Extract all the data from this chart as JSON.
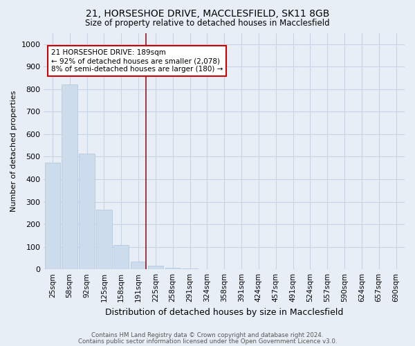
{
  "title1": "21, HORSESHOE DRIVE, MACCLESFIELD, SK11 8GB",
  "title2": "Size of property relative to detached houses in Macclesfield",
  "xlabel": "Distribution of detached houses by size in Macclesfield",
  "ylabel": "Number of detached properties",
  "categories": [
    "25sqm",
    "58sqm",
    "92sqm",
    "125sqm",
    "158sqm",
    "191sqm",
    "225sqm",
    "258sqm",
    "291sqm",
    "324sqm",
    "358sqm",
    "391sqm",
    "424sqm",
    "457sqm",
    "491sqm",
    "524sqm",
    "557sqm",
    "590sqm",
    "624sqm",
    "657sqm",
    "690sqm"
  ],
  "values": [
    475,
    820,
    515,
    265,
    108,
    35,
    15,
    8,
    3,
    1,
    0,
    0,
    0,
    0,
    0,
    0,
    0,
    0,
    0,
    0,
    0
  ],
  "property_index": 5,
  "annotation_line1": "21 HORSESHOE DRIVE: 189sqm",
  "annotation_line2": "← 92% of detached houses are smaller (2,078)",
  "annotation_line3": "8% of semi-detached houses are larger (180) →",
  "bar_color": "#cddcec",
  "bar_edge_color": "#b0c4d8",
  "highlight_color": "#8b1a1a",
  "annotation_box_color": "#ffffff",
  "annotation_box_edge": "#cc0000",
  "grid_color": "#c8d4e4",
  "background_color": "#e8eef6",
  "footer1": "Contains HM Land Registry data © Crown copyright and database right 2024.",
  "footer2": "Contains public sector information licensed under the Open Government Licence v3.0.",
  "ylim": [
    0,
    1050
  ],
  "yticks": [
    0,
    100,
    200,
    300,
    400,
    500,
    600,
    700,
    800,
    900,
    1000
  ]
}
